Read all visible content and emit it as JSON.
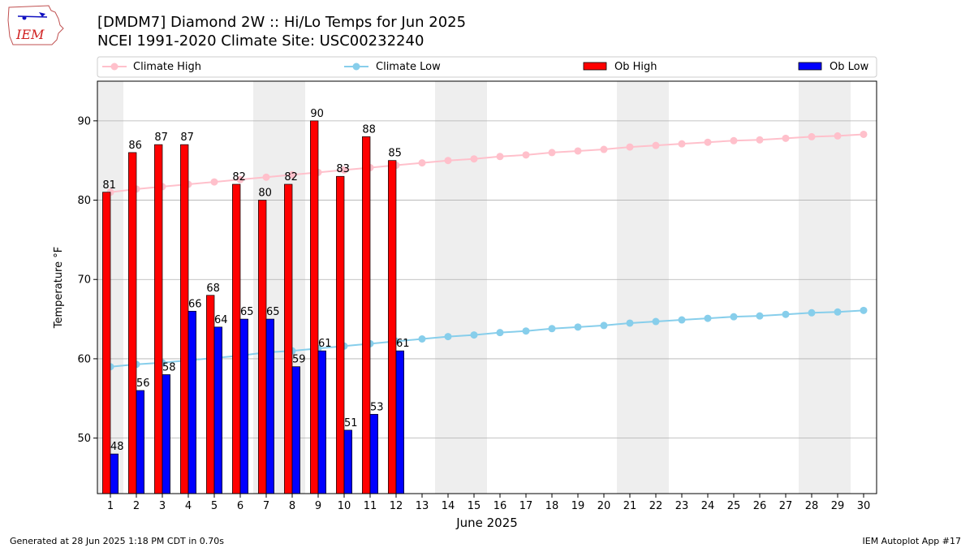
{
  "title_line1": "[DMDM7] Diamond 2W :: Hi/Lo Temps for Jun 2025",
  "title_line2": "NCEI 1991-2020 Climate Site: USC00232240",
  "logo_text": "IEM",
  "footer_left": "Generated at 28 Jun 2025 1:18 PM CDT in 0.70s",
  "footer_right": "IEM Autoplot App #17",
  "colors": {
    "ob_high": "#ff0000",
    "ob_low": "#0000ff",
    "climate_high": "#ffc0cb",
    "climate_low": "#87ceeb",
    "weekend_shade": "#eeeeee",
    "grid": "#b0b0b0"
  },
  "chart_data": {
    "type": "bar",
    "xlabel": "June 2025",
    "ylabel": "Temperature °F",
    "xlim": [
      0.5,
      30.5
    ],
    "ylim": [
      43,
      95
    ],
    "yticks": [
      50,
      60,
      70,
      80,
      90
    ],
    "grid": "horizontal",
    "legend_position": "top",
    "days": [
      1,
      2,
      3,
      4,
      5,
      6,
      7,
      8,
      9,
      10,
      11,
      12,
      13,
      14,
      15,
      16,
      17,
      18,
      19,
      20,
      21,
      22,
      23,
      24,
      25,
      26,
      27,
      28,
      29,
      30
    ],
    "shaded_days": [
      1,
      7,
      8,
      14,
      15,
      21,
      22,
      28,
      29
    ],
    "series": [
      {
        "name": "Climate High",
        "kind": "line",
        "days": [
          1,
          2,
          3,
          4,
          5,
          6,
          7,
          8,
          9,
          10,
          11,
          12,
          13,
          14,
          15,
          16,
          17,
          18,
          19,
          20,
          21,
          22,
          23,
          24,
          25,
          26,
          27,
          28,
          29,
          30
        ],
        "values": [
          81.0,
          81.4,
          81.7,
          82.0,
          82.3,
          82.6,
          82.9,
          83.2,
          83.5,
          83.8,
          84.1,
          84.4,
          84.7,
          85.0,
          85.2,
          85.5,
          85.7,
          86.0,
          86.2,
          86.4,
          86.7,
          86.9,
          87.1,
          87.3,
          87.5,
          87.6,
          87.8,
          88.0,
          88.1,
          88.3
        ]
      },
      {
        "name": "Climate Low",
        "kind": "line",
        "days": [
          1,
          2,
          3,
          4,
          5,
          6,
          7,
          8,
          9,
          10,
          11,
          12,
          13,
          14,
          15,
          16,
          17,
          18,
          19,
          20,
          21,
          22,
          23,
          24,
          25,
          26,
          27,
          28,
          29,
          30
        ],
        "values": [
          59.0,
          59.3,
          59.5,
          59.8,
          60.1,
          60.4,
          60.8,
          61.0,
          61.3,
          61.6,
          61.9,
          62.2,
          62.5,
          62.8,
          63.0,
          63.3,
          63.5,
          63.8,
          64.0,
          64.2,
          64.5,
          64.7,
          64.9,
          65.1,
          65.3,
          65.4,
          65.6,
          65.8,
          65.9,
          66.1
        ]
      },
      {
        "name": "Ob High",
        "kind": "bar",
        "days": [
          1,
          2,
          3,
          4,
          5,
          6,
          7,
          8,
          9,
          10,
          11,
          12
        ],
        "values": [
          81,
          86,
          87,
          87,
          68,
          82,
          80,
          82,
          90,
          83,
          88,
          85
        ]
      },
      {
        "name": "Ob Low",
        "kind": "bar",
        "days": [
          1,
          2,
          3,
          4,
          5,
          6,
          7,
          8,
          9,
          10,
          11,
          12
        ],
        "values": [
          48,
          56,
          58,
          66,
          64,
          65,
          65,
          59,
          61,
          51,
          53,
          61
        ]
      }
    ]
  }
}
